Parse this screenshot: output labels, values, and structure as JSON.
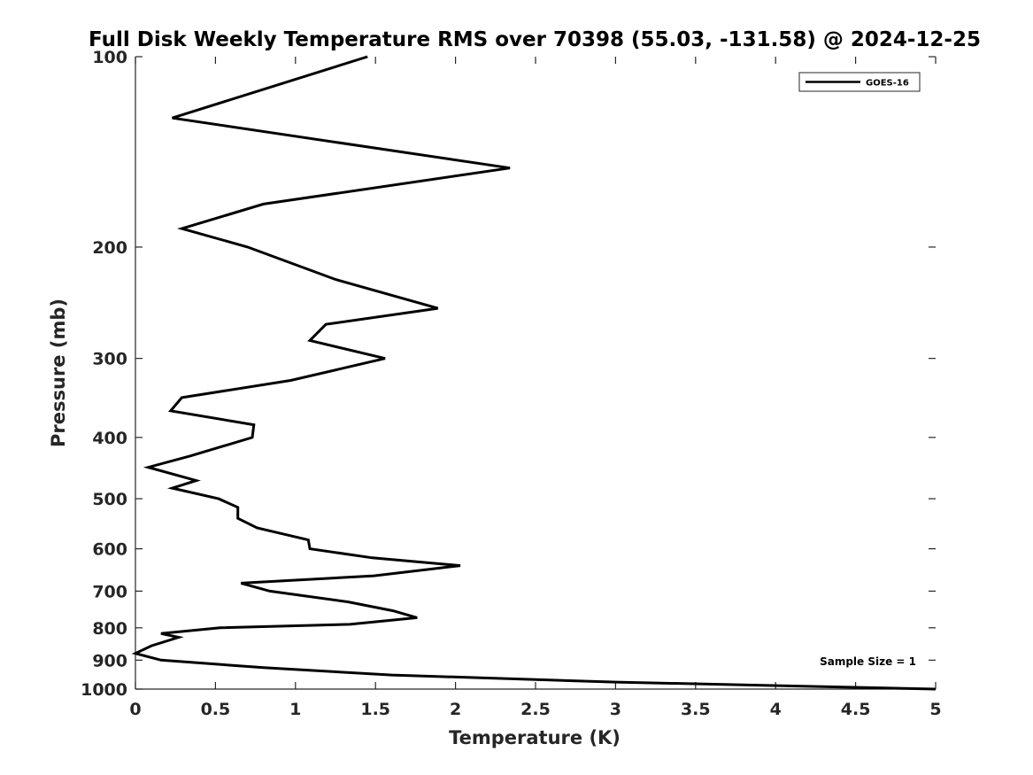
{
  "chart_data": {
    "type": "line",
    "title": "Full Disk Weekly Temperature RMS over 70398 (55.03, -131.58) @ 2024-12-25",
    "xlabel": "Temperature (K)",
    "ylabel": "Pressure (mb)",
    "xlim": [
      0,
      5
    ],
    "ylim": [
      1000,
      100
    ],
    "y_scale": "log",
    "y_reversed": true,
    "x_ticks": [
      0,
      0.5,
      1,
      1.5,
      2,
      2.5,
      3,
      3.5,
      4,
      4.5,
      5
    ],
    "x_tick_labels": [
      "0",
      "0.5",
      "1",
      "1.5",
      "2",
      "2.5",
      "3",
      "3.5",
      "4",
      "4.5",
      "5"
    ],
    "y_ticks": [
      100,
      200,
      300,
      400,
      500,
      600,
      700,
      800,
      900,
      1000
    ],
    "y_tick_labels": [
      "100",
      "200",
      "300",
      "400",
      "500",
      "600",
      "700",
      "800",
      "900",
      "1000"
    ],
    "grid": false,
    "legend_position": "top-right",
    "annotation": "Sample Size = 1",
    "series": [
      {
        "name": "GOES-16",
        "color": "#000000",
        "points": [
          [
            1.45,
            100
          ],
          [
            0.23,
            125
          ],
          [
            2.34,
            150
          ],
          [
            0.8,
            171
          ],
          [
            0.29,
            187
          ],
          [
            0.7,
            200
          ],
          [
            1.25,
            225
          ],
          [
            1.89,
            250
          ],
          [
            1.19,
            265
          ],
          [
            1.09,
            281
          ],
          [
            1.56,
            300
          ],
          [
            0.97,
            325
          ],
          [
            0.29,
            346
          ],
          [
            0.22,
            363
          ],
          [
            0.74,
            382
          ],
          [
            0.73,
            400
          ],
          [
            0.34,
            428
          ],
          [
            0.08,
            446
          ],
          [
            0.38,
            468
          ],
          [
            0.23,
            481
          ],
          [
            0.52,
            500
          ],
          [
            0.64,
            516
          ],
          [
            0.64,
            537
          ],
          [
            0.76,
            556
          ],
          [
            1.08,
            581
          ],
          [
            1.09,
            600
          ],
          [
            1.48,
            620
          ],
          [
            2.03,
            638
          ],
          [
            1.49,
            662
          ],
          [
            0.66,
            680
          ],
          [
            0.84,
            700
          ],
          [
            1.33,
            728
          ],
          [
            1.61,
            752
          ],
          [
            1.76,
            771
          ],
          [
            1.34,
            790
          ],
          [
            0.53,
            800
          ],
          [
            0.16,
            817
          ],
          [
            0.27,
            828
          ],
          [
            0.1,
            854
          ],
          [
            0.0,
            878
          ],
          [
            0.16,
            900
          ],
          [
            0.8,
            925
          ],
          [
            1.6,
            950
          ],
          [
            3.0,
            975
          ],
          [
            5.0,
            1000
          ]
        ]
      }
    ]
  }
}
